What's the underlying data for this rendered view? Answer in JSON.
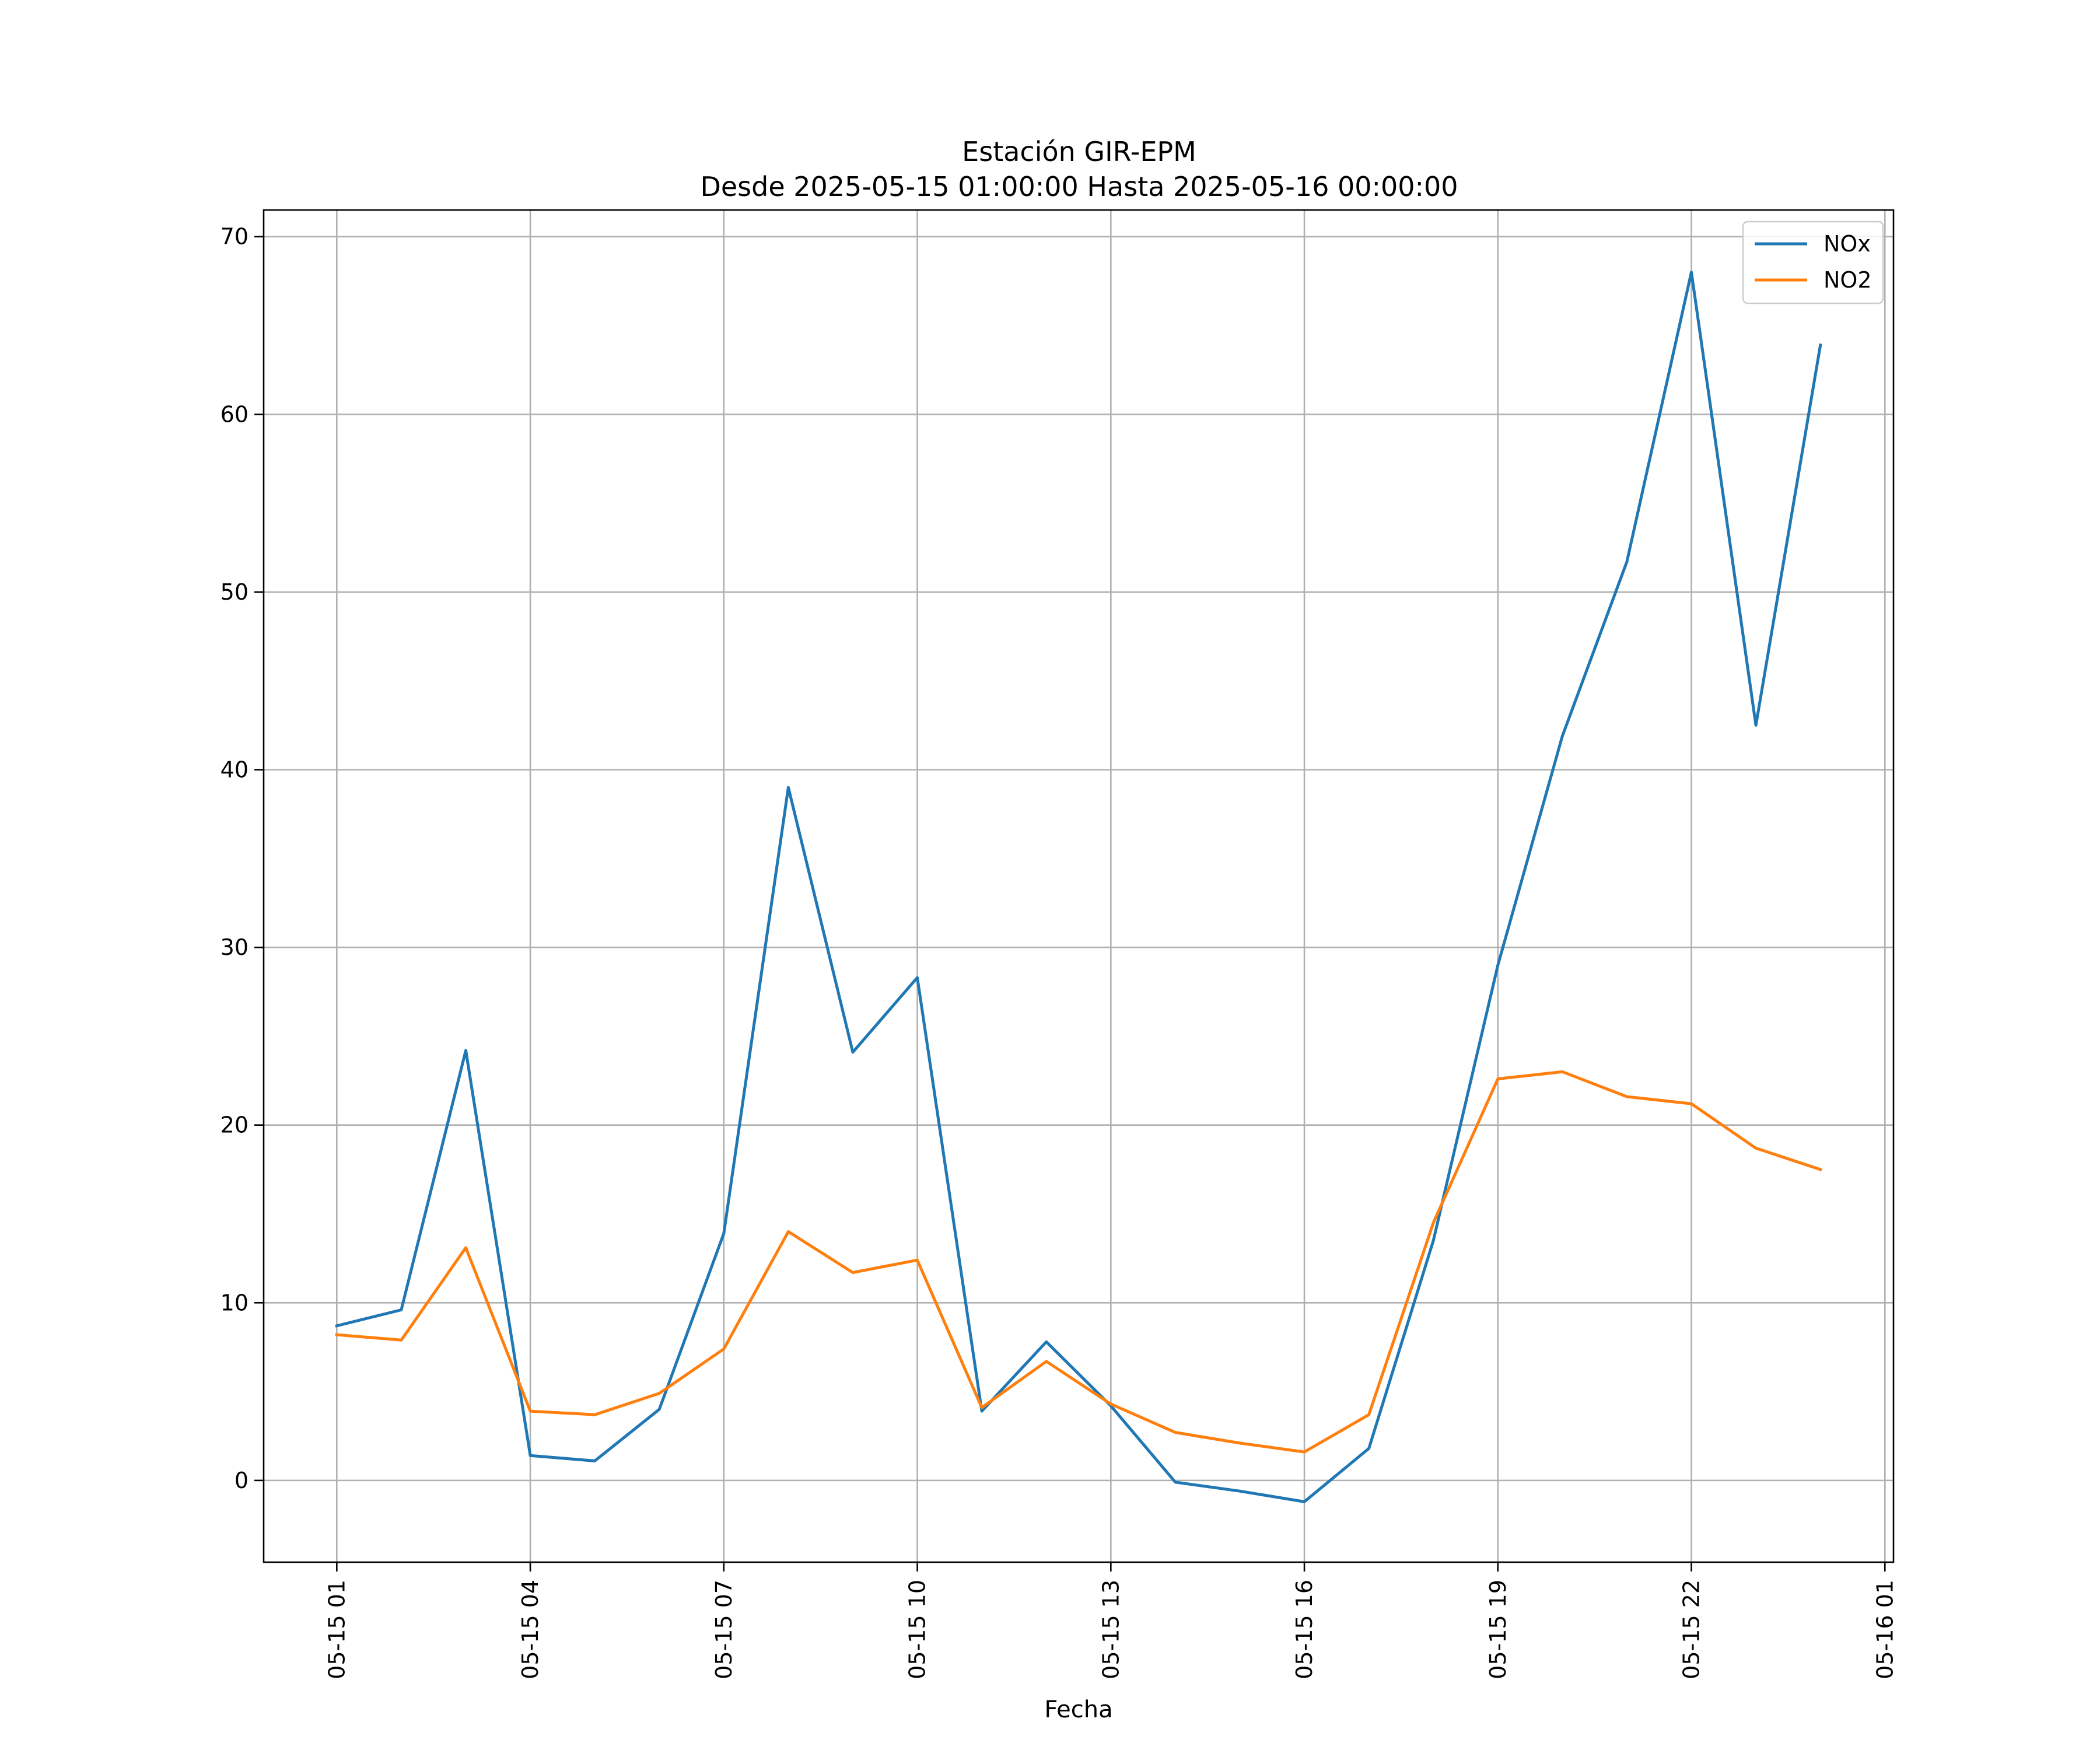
{
  "chart_data": {
    "type": "line",
    "title": "Estación GIR-EPM",
    "subtitle": "Desde 2025-05-15 01:00:00 Hasta 2025-05-16 00:00:00",
    "xlabel": "Fecha",
    "ylabel": "",
    "x": [
      "2025-05-15 01:00",
      "2025-05-15 02:00",
      "2025-05-15 03:00",
      "2025-05-15 04:00",
      "2025-05-15 05:00",
      "2025-05-15 06:00",
      "2025-05-15 07:00",
      "2025-05-15 08:00",
      "2025-05-15 09:00",
      "2025-05-15 10:00",
      "2025-05-15 11:00",
      "2025-05-15 12:00",
      "2025-05-15 13:00",
      "2025-05-15 14:00",
      "2025-05-15 15:00",
      "2025-05-15 16:00",
      "2025-05-15 17:00",
      "2025-05-15 18:00",
      "2025-05-15 19:00",
      "2025-05-15 20:00",
      "2025-05-15 21:00",
      "2025-05-15 22:00",
      "2025-05-15 23:00",
      "2025-05-16 00:00"
    ],
    "series": [
      {
        "name": "NOx",
        "color": "#1f77b4",
        "values": [
          8.7,
          9.6,
          24.2,
          1.4,
          1.1,
          4.0,
          13.9,
          39.0,
          24.1,
          28.3,
          3.9,
          7.8,
          4.2,
          -0.1,
          -0.6,
          -1.2,
          1.8,
          13.5,
          29.0,
          41.9,
          51.7,
          68.0,
          42.5,
          63.9
        ]
      },
      {
        "name": "NO2",
        "color": "#ff7f0e",
        "values": [
          8.2,
          7.9,
          13.1,
          3.9,
          3.7,
          4.9,
          7.4,
          14.0,
          11.7,
          12.4,
          4.1,
          6.7,
          4.3,
          2.7,
          2.1,
          1.6,
          3.7,
          14.5,
          22.6,
          23.0,
          21.6,
          21.2,
          18.7,
          17.5
        ]
      }
    ],
    "x_ticks": [
      "05-15 01",
      "05-15 04",
      "05-15 07",
      "05-15 10",
      "05-15 13",
      "05-15 16",
      "05-15 19",
      "05-15 22",
      "05-16 01"
    ],
    "y_ticks": [
      "0",
      "10",
      "20",
      "30",
      "40",
      "50",
      "60",
      "70"
    ],
    "ylim": [
      -4.6,
      71.5
    ],
    "xlim": [
      "2025-05-14 23:52",
      "2025-05-16 01:08"
    ],
    "grid": true,
    "legend": "top-right"
  }
}
